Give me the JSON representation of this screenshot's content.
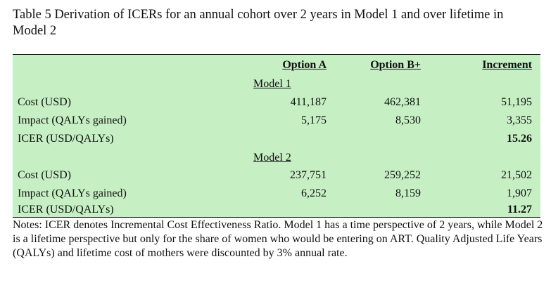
{
  "caption": "Table 5 Derivation of ICERs for an annual cohort over 2 years in Model 1 and over lifetime in Model 2",
  "table": {
    "headers": {
      "option_a": "Option A",
      "option_b": "Option B+",
      "increment": "Increment"
    },
    "model1": {
      "label": "Model 1",
      "cost": {
        "label": "Cost (USD)",
        "a": "411,187",
        "b": "462,381",
        "inc": "51,195"
      },
      "impact": {
        "label": "Impact (QALYs gained)",
        "a": "5,175",
        "b": "8,530",
        "inc": "3,355"
      },
      "icer": {
        "label": "ICER (USD/QALYs)",
        "inc": "15.26"
      }
    },
    "model2": {
      "label": "Model 2",
      "cost": {
        "label": "Cost (USD)",
        "a": "237,751",
        "b": "259,252",
        "inc": "21,502"
      },
      "impact": {
        "label": "Impact (QALYs gained)",
        "a": "6,252",
        "b": "8,159",
        "inc": "1,907"
      },
      "icer": {
        "label": "ICER (USD/QALYs)",
        "inc": "11.27"
      }
    }
  },
  "notes": "Notes: ICER denotes Incremental Cost Effectiveness Ratio. Model 1 has a time perspective of 2 years, while Model 2 is a lifetime perspective but only for the share of women who would be entering on ART. Quality Adjusted Life Years (QALYs) and lifetime cost of mothers were discounted by 3% annual rate."
}
